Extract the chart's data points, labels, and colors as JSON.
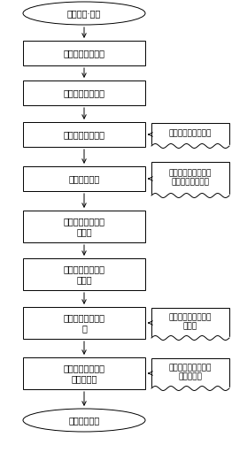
{
  "background_color": "#ffffff",
  "main_boxes": [
    {
      "text": "节能监察·对标",
      "shape": "oval"
    },
    {
      "text": "设备基础信息识别",
      "shape": "rect"
    },
    {
      "text": "设备运行数据采集",
      "shape": "rect"
    },
    {
      "text": "设备运行效率计算",
      "shape": "rect"
    },
    {
      "text": "设备能效对标",
      "shape": "rect"
    },
    {
      "text": "产品及工序工序信\n息收集",
      "shape": "rect"
    },
    {
      "text": "产品及工序运行数\n据采集",
      "shape": "rect"
    },
    {
      "text": "产品及工序单耗计\n算",
      "shape": "rect"
    },
    {
      "text": "产品单耗及工序单\n耗限额对标",
      "shape": "rect"
    },
    {
      "text": "生成监察报告",
      "shape": "oval"
    }
  ],
  "side_boxes": [
    {
      "text": "设备效率计算公式库",
      "connect_to": 3
    },
    {
      "text": "数字化设备能效限定\n值及能耗等级标志",
      "connect_to": 4
    },
    {
      "text": "产品及工艺单耗计算\n公式库",
      "connect_to": 7
    },
    {
      "text": "数字化产品及工序单\n耗限额标准",
      "connect_to": 8
    }
  ],
  "font_size": 7,
  "side_font_size": 6.5
}
